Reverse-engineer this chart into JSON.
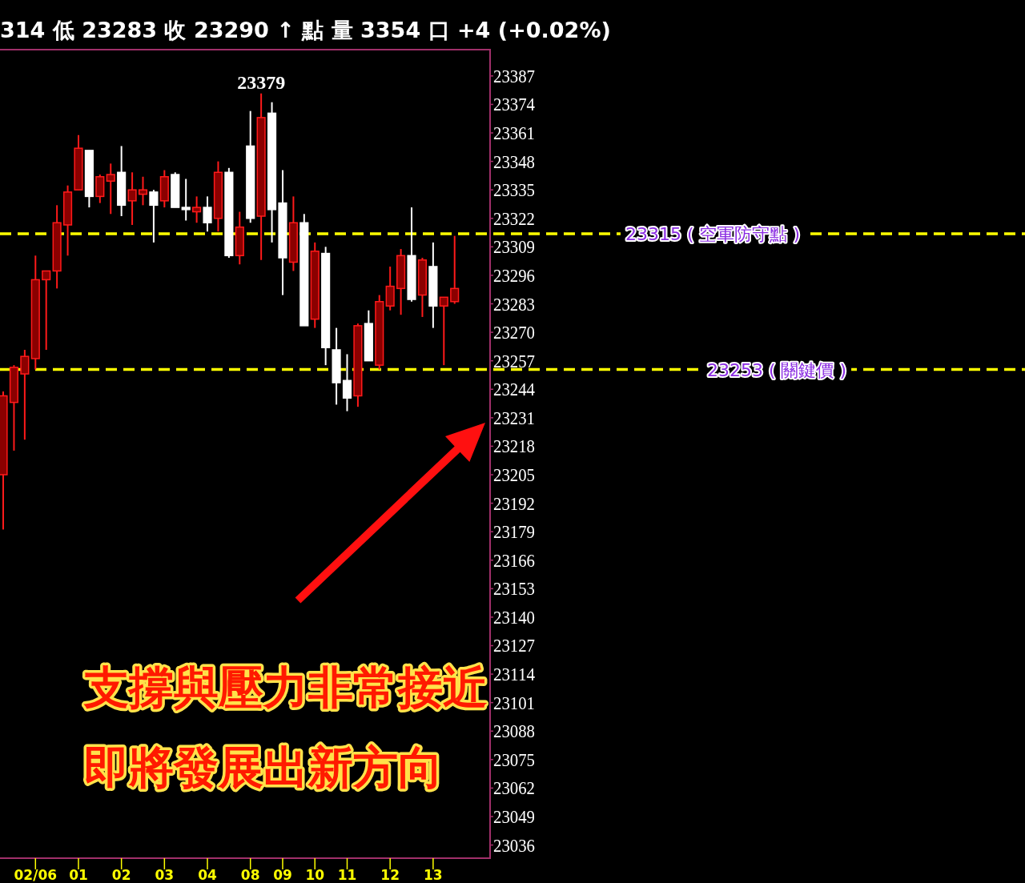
{
  "chart_data": {
    "type": "candlestick",
    "title": "314 低 23283 收 23290 ↑ 點 量 3354 口 +4 (+0.02%)",
    "categories": [
      null,
      null,
      null,
      "02/06",
      null,
      null,
      null,
      "01",
      null,
      null,
      null,
      "02",
      null,
      null,
      null,
      "03",
      null,
      null,
      null,
      "04",
      null,
      null,
      null,
      "08",
      null,
      null,
      "09",
      null,
      null,
      "10",
      null,
      null,
      "11",
      null,
      null,
      null,
      "12",
      null,
      null,
      null,
      "13",
      null,
      null
    ],
    "ohlc": [
      [
        23205,
        23243,
        23180,
        23241
      ],
      [
        23238,
        23255,
        23216,
        23254
      ],
      [
        23251,
        23262,
        23221,
        23259
      ],
      [
        23258,
        23305,
        23253,
        23294
      ],
      [
        23294,
        23298,
        23262,
        23298
      ],
      [
        23298,
        23328,
        23290,
        23320
      ],
      [
        23319,
        23337,
        23305,
        23334
      ],
      [
        23335,
        23360,
        23335,
        23354
      ],
      [
        23353,
        23353,
        23327,
        23332
      ],
      [
        23332,
        23342,
        23329,
        23341
      ],
      [
        23339,
        23347,
        23324,
        23342
      ],
      [
        23343,
        23355,
        23323,
        23328
      ],
      [
        23330,
        23343,
        23319,
        23335
      ],
      [
        23333,
        23341,
        23328,
        23335
      ],
      [
        23334,
        23335,
        23311,
        23328
      ],
      [
        23330,
        23344,
        23327,
        23341
      ],
      [
        23342,
        23343,
        23327,
        23327
      ],
      [
        23327,
        23340,
        23321,
        23326
      ],
      [
        23325,
        23332,
        23320,
        23327
      ],
      [
        23327,
        23332,
        23316,
        23320
      ],
      [
        23322,
        23348,
        23316,
        23343
      ],
      [
        23343,
        23345,
        23304,
        23305
      ],
      [
        23305,
        23325,
        23301,
        23318
      ],
      [
        23355,
        23371,
        23320,
        23322
      ],
      [
        23323,
        23379,
        23303,
        23368
      ],
      [
        23370,
        23375,
        23311,
        23326
      ],
      [
        23329,
        23344,
        23287,
        23304
      ],
      [
        23302,
        23332,
        23298,
        23320
      ],
      [
        23320,
        23324,
        23273,
        23273
      ],
      [
        23276,
        23311,
        23272,
        23307
      ],
      [
        23306,
        23309,
        23255,
        23263
      ],
      [
        23262,
        23272,
        23237,
        23247
      ],
      [
        23248,
        23260,
        23234,
        23240
      ],
      [
        23241,
        23274,
        23236,
        23273
      ],
      [
        23274,
        23280,
        23257,
        23257
      ],
      [
        23255,
        23287,
        23253,
        23284
      ],
      [
        23282,
        23300,
        23280,
        23291
      ],
      [
        23290,
        23308,
        23278,
        23305
      ],
      [
        23305,
        23327,
        23284,
        23285
      ],
      [
        23287,
        23304,
        23277,
        23303
      ],
      [
        23300,
        23311,
        23272,
        23282
      ],
      [
        23282,
        23286,
        23255,
        23286
      ],
      [
        23284,
        23314,
        23283,
        23290
      ]
    ],
    "ylim": [
      23030,
      23399
    ],
    "yticks": [
      23387,
      23374,
      23361,
      23348,
      23335,
      23322,
      23309,
      23296,
      23283,
      23270,
      23257,
      23244,
      23231,
      23218,
      23205,
      23192,
      23179,
      23166,
      23153,
      23140,
      23127,
      23114,
      23101,
      23088,
      23075,
      23062,
      23049,
      23036
    ],
    "ref_lines": [
      {
        "axis": "y",
        "value": 23315,
        "label": "23315 ( 空軍防守點 )",
        "color": "#ffff00",
        "line_style": "dashed"
      },
      {
        "axis": "y",
        "value": 23253,
        "label": "23253 ( 關鍵價 )",
        "color": "#ffff00",
        "line_style": "dashed"
      }
    ],
    "annotations": [
      {
        "text": "23379",
        "y": 23379
      },
      "支撐與壓力非常接近",
      "即將發展出新方向"
    ],
    "grid": false
  }
}
